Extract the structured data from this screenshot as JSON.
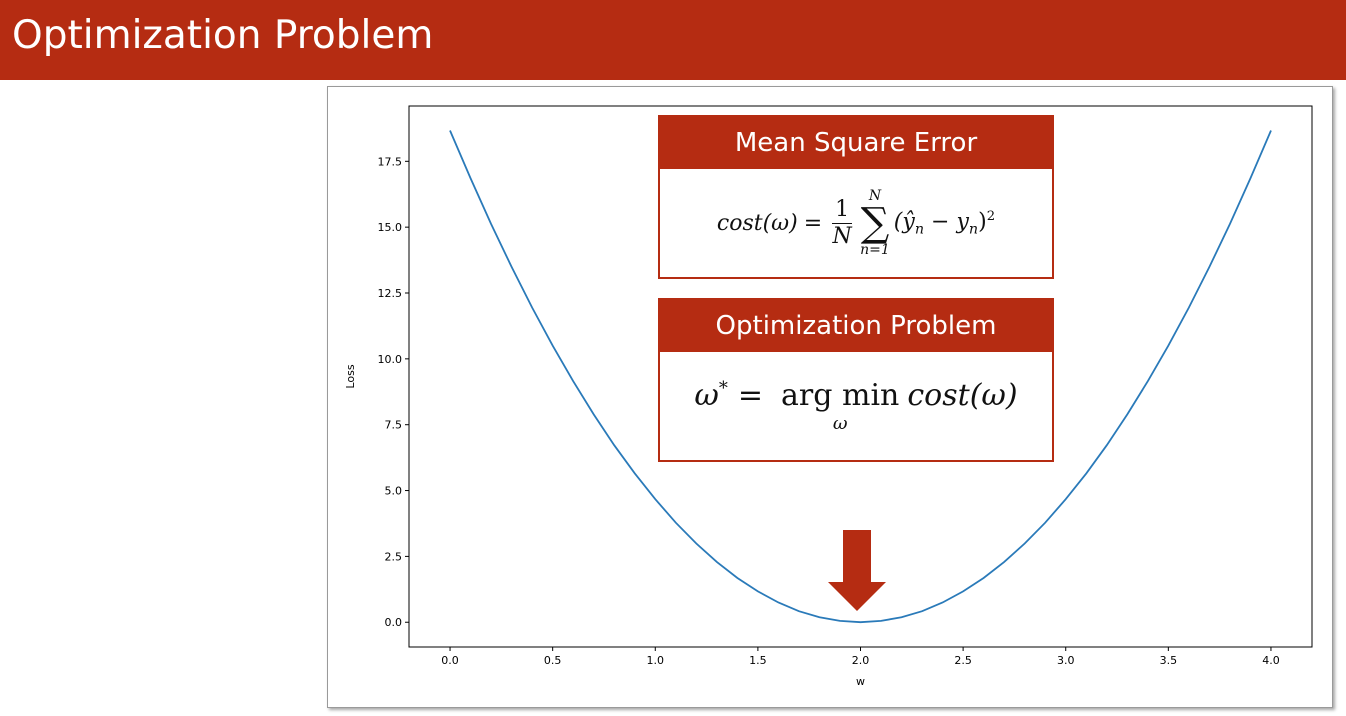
{
  "slide": {
    "title": "Optimization Problem",
    "accent_color": "#b52c12"
  },
  "box_mse": {
    "title": "Mean Square Error",
    "lhs": "cost(ω)",
    "equals": "=",
    "frac_num": "1",
    "frac_den": "N",
    "sum_upper": "N",
    "sum_symbol": "∑",
    "sum_lower": "n=1",
    "summand": "(ŷ",
    "summand_sub1": "n",
    "summand_mid": " − y",
    "summand_sub2": "n",
    "summand_close": ")",
    "power": "2"
  },
  "box_opt": {
    "title": "Optimization Problem",
    "lhs": "ω",
    "lhs_sup": "*",
    "equals": "=",
    "operator": "arg min",
    "operator_sub": "ω",
    "rhs": "cost(ω)"
  },
  "arrow": {
    "icon": "down-arrow-icon",
    "color": "#b52c12"
  },
  "chart_data": {
    "type": "line",
    "xlabel": "w",
    "ylabel": "Loss",
    "xlim": [
      -0.2,
      4.2
    ],
    "ylim": [
      -0.94,
      19.6
    ],
    "xticks": [
      0.0,
      0.5,
      1.0,
      1.5,
      2.0,
      2.5,
      3.0,
      3.5,
      4.0
    ],
    "xtick_labels": [
      "0.0",
      "0.5",
      "1.0",
      "1.5",
      "2.0",
      "2.5",
      "3.0",
      "3.5",
      "4.0"
    ],
    "yticks": [
      0.0,
      2.5,
      5.0,
      7.5,
      10.0,
      12.5,
      15.0,
      17.5
    ],
    "ytick_labels": [
      "0.0",
      "2.5",
      "5.0",
      "7.5",
      "10.0",
      "12.5",
      "15.0",
      "17.5"
    ],
    "line_color": "#2a7ab9",
    "series": [
      {
        "x": [
          0.0,
          0.1,
          0.2,
          0.3,
          0.4,
          0.5,
          0.6,
          0.7,
          0.8,
          0.9,
          1.0,
          1.1,
          1.2,
          1.3,
          1.4,
          1.5,
          1.6,
          1.7,
          1.8,
          1.9,
          2.0,
          2.1,
          2.2,
          2.3,
          2.4,
          2.5,
          2.6,
          2.7,
          2.8,
          2.9,
          3.0,
          3.1,
          3.2,
          3.3,
          3.4,
          3.5,
          3.6,
          3.7,
          3.8,
          3.9,
          4.0
        ],
        "y": [
          18.67,
          16.85,
          15.12,
          13.49,
          11.95,
          10.5,
          9.15,
          7.89,
          6.72,
          5.65,
          4.67,
          3.78,
          2.99,
          2.29,
          1.68,
          1.17,
          0.75,
          0.42,
          0.19,
          0.05,
          0.0,
          0.05,
          0.19,
          0.42,
          0.75,
          1.17,
          1.68,
          2.29,
          2.99,
          3.78,
          4.67,
          5.65,
          6.72,
          7.89,
          9.15,
          10.5,
          11.95,
          13.49,
          15.12,
          16.85,
          18.67
        ]
      }
    ]
  }
}
